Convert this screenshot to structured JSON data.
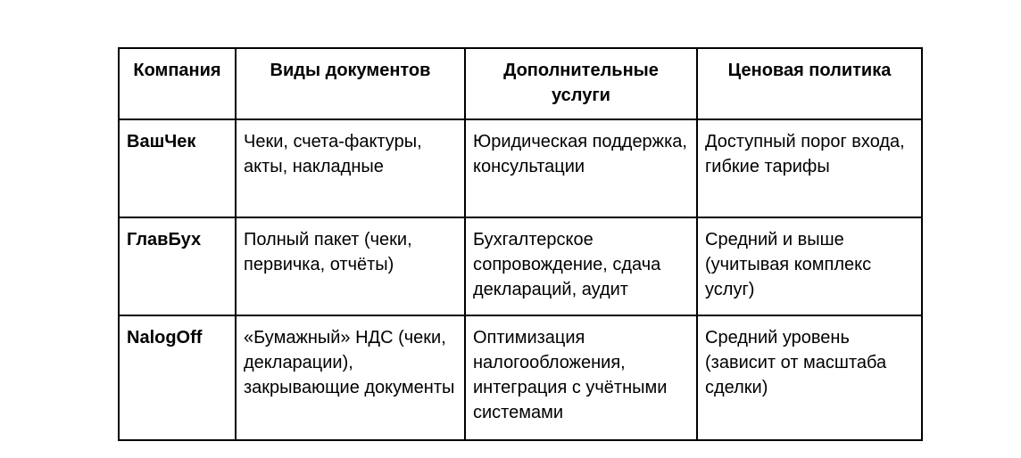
{
  "page": {
    "background_color": "#ffffff",
    "text_color": "#000000",
    "border_color": "#000000"
  },
  "table": {
    "headers": [
      "Компания",
      "Виды документов",
      "Дополнительные услуги",
      "Ценовая политика"
    ],
    "rows": [
      {
        "company": "ВашЧек",
        "documents": "Чеки, счета-фактуры, акты, накладные",
        "services": "Юридическая поддержка, консультации",
        "pricing": "Доступный порог входа, гибкие тарифы"
      },
      {
        "company": "ГлавБух",
        "documents": "Полный пакет (чеки, первичка, отчёты)",
        "services": "Бухгалтерское сопровождение, сдача деклараций, аудит",
        "pricing": "Средний и выше (учитывая комплекс услуг)"
      },
      {
        "company": "NalogOff",
        "documents": "«Бумажный» НДС (чеки, декларации), закрывающие документы",
        "services": "Оптимизация налогообложения, интеграция с учётными системами",
        "pricing": "Средний уровень (зависит от масштаба сделки)"
      }
    ]
  }
}
